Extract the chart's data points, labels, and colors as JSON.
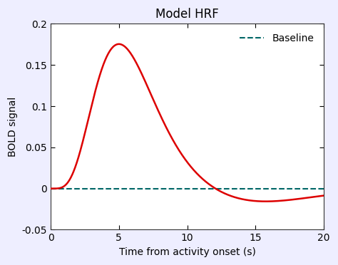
{
  "title": "Model HRF",
  "xlabel": "Time from activity onset (s)",
  "ylabel": "BOLD signal",
  "xlim": [
    0,
    20
  ],
  "ylim": [
    -0.05,
    0.2
  ],
  "xticks": [
    0,
    5,
    10,
    15,
    20
  ],
  "yticks": [
    -0.05,
    0,
    0.05,
    0.1,
    0.15,
    0.2
  ],
  "hrf_color": "#dd0000",
  "baseline_color": "#006666",
  "baseline_label": "Baseline",
  "background_color": "#eeeeff",
  "axes_bg_color": "#ffffff",
  "title_fontsize": 12,
  "label_fontsize": 10,
  "tick_fontsize": 10,
  "hrf_linewidth": 1.8,
  "baseline_linewidth": 1.5,
  "hrf_a1": 6,
  "hrf_a2": 16,
  "hrf_b1": 1,
  "hrf_b2": 1,
  "hrf_c": 0.1667
}
